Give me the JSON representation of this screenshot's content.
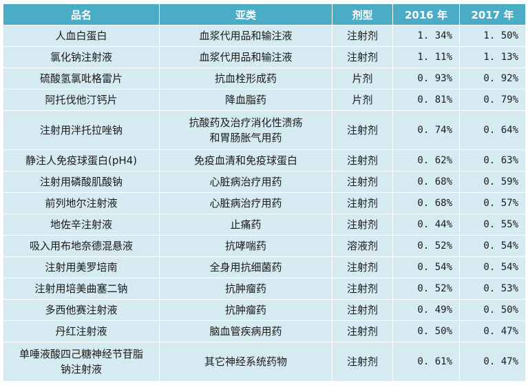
{
  "headers": [
    "品名",
    "亚类",
    "剂型",
    "2016 年",
    "2017 年"
  ],
  "rows": [
    {
      "name": "人血白蛋白",
      "subclass": "血浆代用品和输注液",
      "form": "注射剂",
      "y2016": "1. 34%",
      "y2017": "1. 50%"
    },
    {
      "name": "氯化钠注射液",
      "subclass": "血浆代用品和输注液",
      "form": "注射剂",
      "y2016": "1. 11%",
      "y2017": "1. 13%"
    },
    {
      "name": "硫酸氢氯吡格雷片",
      "subclass": "抗血栓形成药",
      "form": "片剂",
      "y2016": "0. 93%",
      "y2017": "0. 92%"
    },
    {
      "name": "阿托伐他汀钙片",
      "subclass": "降血脂药",
      "form": "片剂",
      "y2016": "0. 81%",
      "y2017": "0. 79%"
    },
    {
      "name": "注射用泮托拉唑钠",
      "subclass": [
        "抗酸药及治疗消化性溃疡",
        "和胃肠胀气用药"
      ],
      "form": "注射剂",
      "y2016": "0. 74%",
      "y2017": "0. 64%"
    },
    {
      "name": "静注人免疫球蛋白(pH4)",
      "subclass": "免疫血清和免疫球蛋白",
      "form": "注射剂",
      "y2016": "0. 62%",
      "y2017": "0. 63%"
    },
    {
      "name": "注射用磷酸肌酸钠",
      "subclass": "心脏病治疗用药",
      "form": "注射剂",
      "y2016": "0. 68%",
      "y2017": "0. 59%"
    },
    {
      "name": "前列地尔注射液",
      "subclass": "心脏病治疗用药",
      "form": "注射剂",
      "y2016": "0. 68%",
      "y2017": "0. 57%"
    },
    {
      "name": "地佐辛注射液",
      "subclass": "止痛药",
      "form": "注射剂",
      "y2016": "0. 44%",
      "y2017": "0. 55%"
    },
    {
      "name": "吸入用布地奈德混悬液",
      "subclass": "抗哮喘药",
      "form": "溶液剂",
      "y2016": "0. 52%",
      "y2017": "0. 54%"
    },
    {
      "name": "注射用美罗培南",
      "subclass": "全身用抗细菌药",
      "form": "注射剂",
      "y2016": "0. 54%",
      "y2017": "0. 54%"
    },
    {
      "name": "注射用培美曲塞二钠",
      "subclass": "抗肿瘤药",
      "form": "注射剂",
      "y2016": "0. 52%",
      "y2017": "0. 53%"
    },
    {
      "name": "多西他赛注射液",
      "subclass": "抗肿瘤药",
      "form": "注射剂",
      "y2016": "0. 49%",
      "y2017": "0. 50%"
    },
    {
      "name": "丹红注射液",
      "subclass": "脑血管疾病用药",
      "form": "注射剂",
      "y2016": "0. 50%",
      "y2017": "0. 47%"
    },
    {
      "name": [
        "单唾液酸四己糖神经节苷脂",
        "钠注射液"
      ],
      "subclass": "其它神经系统药物",
      "form": "注射剂",
      "y2016": "0. 61%",
      "y2017": "0. 47%"
    }
  ]
}
